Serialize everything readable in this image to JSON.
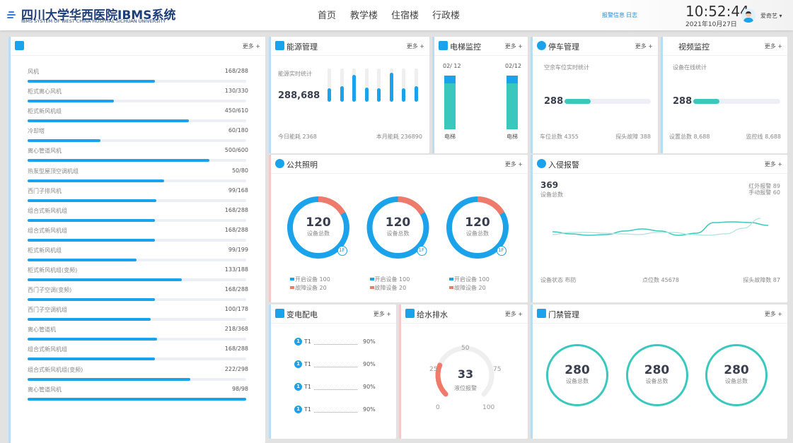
{
  "header": {
    "title": "四川大学华西医院IBMS系统",
    "subtitle": "IBMS SYSTEM OF WEST CHINA HOSPITAL SICHUAN UNIVERSITY",
    "nav": [
      "首页",
      "教学楼",
      "住宿楼",
      "行政楼"
    ],
    "alarm_link": "报警信息",
    "log_link": "日志",
    "time": "10:52:44",
    "date": "2021年10月27日",
    "user": "爱奇艺 ▾"
  },
  "more_label": "更多 +",
  "hvac": {
    "items": [
      {
        "label": "风机",
        "value": "168/288",
        "ratio": 0.583
      },
      {
        "label": "柜式离心风机",
        "value": "130/330",
        "ratio": 0.394
      },
      {
        "label": "柜式新风机组",
        "value": "450/610",
        "ratio": 0.738
      },
      {
        "label": "冷却塔",
        "value": "60/180",
        "ratio": 0.333
      },
      {
        "label": "离心管道风机",
        "value": "500/600",
        "ratio": 0.833
      },
      {
        "label": "热泵型屋顶空调机组",
        "value": "50/80",
        "ratio": 0.625
      },
      {
        "label": "西门子排风机",
        "value": "99/168",
        "ratio": 0.589
      },
      {
        "label": "组合式新风机组",
        "value": "168/288",
        "ratio": 0.583
      },
      {
        "label": "组合式新风机组",
        "value": "168/288",
        "ratio": 0.583
      },
      {
        "label": "柜式新风机组",
        "value": "99/199",
        "ratio": 0.497
      },
      {
        "label": "柜式新风机组(变频)",
        "value": "133/188",
        "ratio": 0.707
      },
      {
        "label": "西门子空调(变频)",
        "value": "168/288",
        "ratio": 0.583
      },
      {
        "label": "西门子空调机组",
        "value": "100/178",
        "ratio": 0.562
      },
      {
        "label": "离心管道机",
        "value": "218/368",
        "ratio": 0.592
      },
      {
        "label": "组合式新风机组",
        "value": "168/288",
        "ratio": 0.583
      },
      {
        "label": "组合式新风机组(变频)",
        "value": "222/298",
        "ratio": 0.745
      },
      {
        "label": "离心管道风机",
        "value": "98/98",
        "ratio": 1.0
      }
    ]
  },
  "energy": {
    "title": "能源管理",
    "caption": "能源实时统计",
    "total": "288,688",
    "today": "今日能耗 2368",
    "month": "本月能耗 236890",
    "bars": [
      0.4,
      0.47,
      0.8,
      0.43,
      0.4,
      0.88,
      0.4,
      0.47
    ]
  },
  "elevator": {
    "title": "电梯监控",
    "items": [
      {
        "count": "02/ 12",
        "label": "电梯",
        "ratio": 0.86
      },
      {
        "count": "02/12",
        "label": "电梯",
        "ratio": 0.86
      }
    ]
  },
  "parking": {
    "title": "停车管理",
    "caption": "空余车位实时统计",
    "value": "288",
    "ratio": 0.3,
    "total": "车位总数 4355",
    "fault": "探头故障 388"
  },
  "video": {
    "title": "视频监控",
    "caption": "设备在线统计",
    "value": "288",
    "ratio": 0.3,
    "total": "设置总数 8,688",
    "lines": "监控线 8,688"
  },
  "lighting": {
    "title": "公共照明",
    "items": [
      {
        "total": "120",
        "caption": "设备总数",
        "floor": "1F",
        "on": "开启设备 100",
        "fault": "故障设备 20",
        "on_n": 100,
        "fault_n": 20
      },
      {
        "total": "120",
        "caption": "设备总数",
        "floor": "1F",
        "on": "开启设备 100",
        "fault": "故障设备 20",
        "on_n": 100,
        "fault_n": 20
      },
      {
        "total": "120",
        "caption": "设备总数",
        "floor": "1F",
        "on": "开启设备 100",
        "fault": "故障设备 20",
        "on_n": 100,
        "fault_n": 20
      }
    ],
    "colors": {
      "on": "#1aa3ea",
      "fault": "#f07a6a"
    }
  },
  "intrusion": {
    "title": "入侵报警",
    "total": "369",
    "caption": "设备总数",
    "infrared": "红外报警 89",
    "manual": "手动报警 60",
    "status": "设备状态 布防",
    "points": "点位数 45678",
    "fault": "探头故障数 87",
    "chart_data": {
      "type": "line",
      "series": [
        {
          "values": [
            17,
            14,
            12,
            13,
            18,
            21,
            18,
            12,
            15,
            30,
            31,
            30,
            26
          ]
        },
        {
          "values": [
            13,
            16,
            16,
            15,
            14,
            13,
            16,
            16,
            13,
            12,
            14,
            22,
            36
          ]
        }
      ],
      "colors": [
        "#3cc8bd",
        "#a9e4df"
      ]
    }
  },
  "power": {
    "title": "变电配电",
    "items": [
      {
        "badge": "1",
        "name": "T1",
        "value": "90%"
      },
      {
        "badge": "1",
        "name": "T1",
        "value": "90%"
      },
      {
        "badge": "1",
        "name": "T1",
        "value": "90%"
      },
      {
        "badge": "1",
        "name": "T1",
        "value": "90%"
      }
    ]
  },
  "water": {
    "title": "给水排水",
    "value": "33",
    "caption": "液位报警",
    "ticks": [
      "0",
      "25",
      "50",
      "75",
      "100"
    ],
    "min": 0,
    "max": 100
  },
  "access": {
    "title": "门禁管理",
    "items": [
      {
        "total": "280",
        "caption": "设备总数"
      },
      {
        "total": "280",
        "caption": "设备总数"
      },
      {
        "total": "280",
        "caption": "设备总数"
      }
    ]
  }
}
